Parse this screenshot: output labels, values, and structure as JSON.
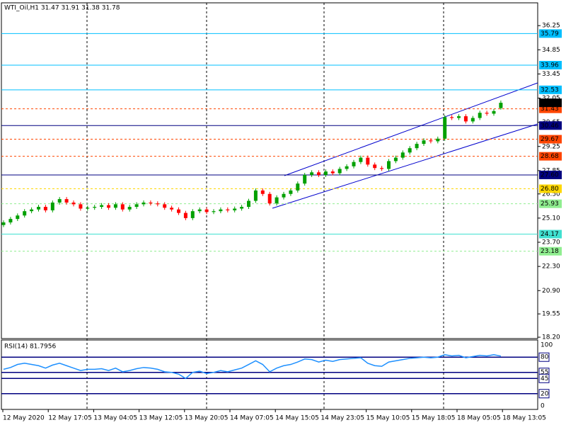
{
  "chart_data": [
    {
      "type": "candlestick",
      "title": "WTI_Oil,H1  31.47 31.91 31.38 31.78",
      "open": [
        24.7,
        24.85,
        25.05,
        25.25,
        25.5,
        25.6,
        25.75,
        25.55,
        26.0,
        26.2,
        26.0,
        25.9,
        25.65,
        25.7,
        25.75,
        25.85,
        25.7,
        25.9,
        25.6,
        25.75,
        25.9,
        26.0,
        25.95,
        25.9,
        25.7,
        25.6,
        25.4,
        25.1,
        25.5,
        25.6,
        25.45,
        25.5,
        25.6,
        25.55,
        25.65,
        25.75,
        26.1,
        26.7,
        26.5,
        25.95,
        26.3,
        26.5,
        26.7,
        27.1,
        27.6,
        27.75,
        27.6,
        27.8,
        27.7,
        27.95,
        28.1,
        28.35,
        28.6,
        28.2,
        28.0,
        27.95,
        28.4,
        28.6,
        28.9,
        29.15,
        29.4,
        29.6,
        29.55,
        29.7,
        30.95,
        30.9,
        31.0,
        30.7,
        30.9,
        31.2,
        31.15,
        31.47
      ],
      "high": [
        24.97,
        25.17,
        25.37,
        25.62,
        25.72,
        25.87,
        25.87,
        26.12,
        26.32,
        26.32,
        26.12,
        26.02,
        25.82,
        25.87,
        25.97,
        25.97,
        26.02,
        26.02,
        25.87,
        26.02,
        26.12,
        26.12,
        26.07,
        26.02,
        25.82,
        25.72,
        25.52,
        25.62,
        25.72,
        25.72,
        25.62,
        25.72,
        25.72,
        25.77,
        25.87,
        26.22,
        26.82,
        26.82,
        26.62,
        26.42,
        26.62,
        26.82,
        27.22,
        27.72,
        27.87,
        27.87,
        27.92,
        27.92,
        28.07,
        28.22,
        28.47,
        28.72,
        28.72,
        28.32,
        28.12,
        28.52,
        28.72,
        29.02,
        29.27,
        29.52,
        29.72,
        29.72,
        29.82,
        31.07,
        31.07,
        31.12,
        31.12,
        31.02,
        31.32,
        31.32,
        31.42,
        31.91
      ],
      "low": [
        24.58,
        24.73,
        24.93,
        25.13,
        25.38,
        25.48,
        25.43,
        25.43,
        25.88,
        25.88,
        25.78,
        25.53,
        25.53,
        25.58,
        25.63,
        25.58,
        25.58,
        25.48,
        25.48,
        25.63,
        25.78,
        25.83,
        25.78,
        25.58,
        25.48,
        25.28,
        24.98,
        24.98,
        25.38,
        25.33,
        25.33,
        25.38,
        25.43,
        25.43,
        25.53,
        25.63,
        25.98,
        26.38,
        25.83,
        25.83,
        26.18,
        26.38,
        26.58,
        26.98,
        27.48,
        27.48,
        27.48,
        27.58,
        27.58,
        27.83,
        27.98,
        28.23,
        28.08,
        27.88,
        27.83,
        27.83,
        28.28,
        28.48,
        28.78,
        29.03,
        29.28,
        29.43,
        29.43,
        29.58,
        30.78,
        30.78,
        30.58,
        30.58,
        30.78,
        31.03,
        31.03,
        31.38
      ],
      "close": [
        24.85,
        25.05,
        25.25,
        25.5,
        25.6,
        25.75,
        25.55,
        26.0,
        26.2,
        26.0,
        25.9,
        25.65,
        25.7,
        25.75,
        25.85,
        25.7,
        25.9,
        25.6,
        25.75,
        25.9,
        26.0,
        25.95,
        25.9,
        25.7,
        25.6,
        25.4,
        25.1,
        25.5,
        25.6,
        25.45,
        25.5,
        25.6,
        25.55,
        25.65,
        25.75,
        26.1,
        26.7,
        26.5,
        25.95,
        26.3,
        26.5,
        26.7,
        27.1,
        27.6,
        27.75,
        27.6,
        27.8,
        27.7,
        27.95,
        28.1,
        28.35,
        28.6,
        28.2,
        28.0,
        27.95,
        28.4,
        28.6,
        28.9,
        29.15,
        29.4,
        29.6,
        29.55,
        29.7,
        30.95,
        30.9,
        31.0,
        30.7,
        30.9,
        31.2,
        31.15,
        31.3,
        31.78
      ],
      "up_color": "#00a000",
      "down_color": "#ff0000",
      "ylim": [
        18.12,
        37.57
      ],
      "yticks": [
        36.25,
        34.85,
        33.45,
        32.05,
        30.65,
        29.25,
        27.85,
        {
          "value": 26.5,
          "label": "26.50"
        },
        {
          "value": 25.1,
          "label": "25.10"
        },
        {
          "value": 23.7,
          "label": "23.70"
        },
        {
          "value": 22.3,
          "label": "22.30"
        },
        {
          "value": 20.9,
          "label": "20.90"
        },
        19.55,
        {
          "value": 18.2,
          "label": "18.20"
        }
      ],
      "levels": [
        {
          "value": 35.79,
          "color": "#00bfff",
          "style": "solid",
          "text_color": "#ffffff"
        },
        {
          "value": 33.96,
          "color": "#00bfff",
          "style": "solid",
          "text_color": "#ffffff"
        },
        {
          "value": 32.53,
          "color": "#00bfff",
          "style": "solid",
          "text_color": "#ffffff"
        },
        {
          "value": 31.43,
          "color": "#ff4500",
          "style": "dashed",
          "text_color": "#ffffff"
        },
        {
          "value": 30.46,
          "color": "#000080",
          "style": "solid",
          "text_color": "#ffffff"
        },
        {
          "value": 29.67,
          "color": "#ff4500",
          "style": "dashed",
          "text_color": "#ffffff"
        },
        {
          "value": 28.68,
          "color": "#ff4500",
          "style": "dashed",
          "text_color": "#ffffff"
        },
        {
          "value": 27.6,
          "label": "27.60",
          "color": "#000080",
          "style": "solid",
          "text_color": "#ffffff"
        },
        {
          "value": 26.8,
          "label": "26.80",
          "color": "#ffd700",
          "style": "dashed",
          "text_color": "#ffffff"
        },
        {
          "value": 25.93,
          "color": "#90ee90",
          "style": "dashed",
          "text_color": "#ffffff"
        },
        {
          "value": 24.17,
          "color": "#40e0d0",
          "style": "solid",
          "text_color": "#ffffff"
        },
        {
          "value": 23.18,
          "color": "#90ee90",
          "style": "dashed",
          "text_color": "#ffffff"
        }
      ],
      "current_price": 31.78,
      "xticks": [
        "12 May 2020",
        "12 May 17:05",
        "13 May 04:05",
        "13 May 12:05",
        "13 May 20:05",
        "14 May 07:05",
        "14 May 15:05",
        "14 May 23:05",
        "15 May 10:05",
        "15 May 18:05",
        "18 May 05:05",
        "18 May 13:05"
      ]
    },
    {
      "type": "line",
      "title": "RSI(14) 81.7956",
      "color": "#1e90ff",
      "values": [
        60,
        63,
        68,
        70,
        68,
        66,
        62,
        67,
        70,
        66,
        62,
        58,
        60,
        60,
        61,
        58,
        62,
        56,
        58,
        61,
        63,
        62,
        60,
        56,
        55,
        52,
        45,
        55,
        57,
        53,
        55,
        58,
        56,
        59,
        62,
        68,
        74,
        68,
        56,
        62,
        66,
        68,
        72,
        77,
        76,
        72,
        75,
        73,
        76,
        77,
        78,
        79,
        70,
        66,
        65,
        72,
        74,
        76,
        78,
        79,
        80,
        79,
        80,
        84,
        82,
        83,
        79,
        81,
        83,
        82,
        84,
        81.7956
      ],
      "ylim": [
        -5.9,
        108.2
      ],
      "yticks": [
        100,
        80,
        55,
        45,
        20,
        0
      ],
      "levels": [
        80,
        55,
        45,
        20
      ],
      "level_color": "#000080"
    }
  ]
}
